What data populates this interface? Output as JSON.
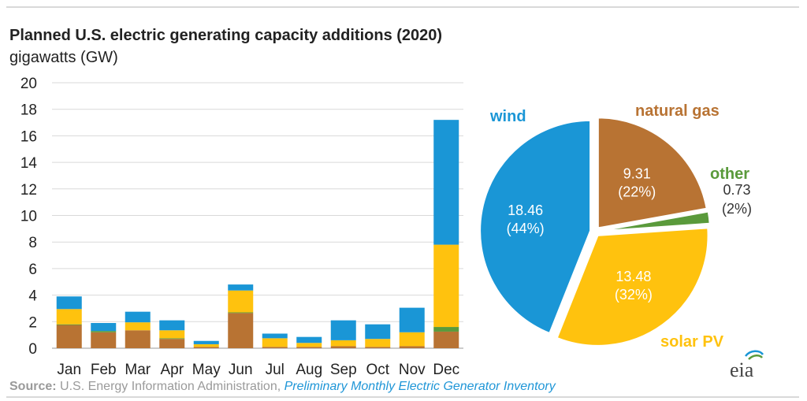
{
  "header": {
    "title": "Planned U.S. electric generating capacity additions (2020)",
    "subtitle": "gigawatts (GW)"
  },
  "source": {
    "label": "Source:",
    "agency": "U.S. Energy Information Administration,",
    "publication": "Preliminary Monthly Electric Generator Inventory"
  },
  "logo": {
    "text": "eia"
  },
  "colors": {
    "natural_gas": "#b87333",
    "other": "#5a9a3b",
    "solar": "#ffc20e",
    "wind": "#1a96d6",
    "grid": "#d9d9d9",
    "axis_text": "#222222",
    "pie_value_text": "#ffffff",
    "other_value_text": "#333333"
  },
  "chart_data": [
    {
      "type": "bar",
      "stacked": true,
      "categories": [
        "Jan",
        "Feb",
        "Mar",
        "Apr",
        "May",
        "Jun",
        "Jul",
        "Aug",
        "Sep",
        "Oct",
        "Nov",
        "Dec"
      ],
      "ylim": [
        0,
        20
      ],
      "yticks": [
        0,
        2,
        4,
        6,
        8,
        10,
        12,
        14,
        16,
        18,
        20
      ],
      "grid": true,
      "series": [
        {
          "key": "natural_gas",
          "values": [
            1.75,
            1.2,
            1.35,
            0.7,
            0.1,
            2.65,
            0.1,
            0.1,
            0.15,
            0.1,
            0.15,
            1.25
          ]
        },
        {
          "key": "other",
          "values": [
            0.05,
            0.1,
            0.0,
            0.05,
            0.0,
            0.05,
            0.0,
            0.0,
            0.0,
            0.0,
            0.0,
            0.35
          ]
        },
        {
          "key": "solar",
          "values": [
            1.15,
            0.0,
            0.6,
            0.6,
            0.2,
            1.65,
            0.65,
            0.3,
            0.45,
            0.6,
            1.05,
            6.2
          ]
        },
        {
          "key": "wind",
          "values": [
            0.95,
            0.6,
            0.8,
            0.75,
            0.25,
            0.45,
            0.35,
            0.45,
            1.5,
            1.1,
            1.85,
            9.4
          ]
        }
      ]
    },
    {
      "type": "pie",
      "slices": [
        {
          "key": "natural_gas",
          "label": "natural gas",
          "value": 9.31,
          "value_text": "9.31",
          "pct_text": "(22%)"
        },
        {
          "key": "other",
          "label": "other",
          "value": 0.73,
          "value_text": "0.73",
          "pct_text": "(2%)"
        },
        {
          "key": "solar",
          "label": "solar PV",
          "value": 13.48,
          "value_text": "13.48",
          "pct_text": "(32%)"
        },
        {
          "key": "wind",
          "label": "wind",
          "value": 18.46,
          "value_text": "18.46",
          "pct_text": "(44%)"
        }
      ]
    }
  ]
}
